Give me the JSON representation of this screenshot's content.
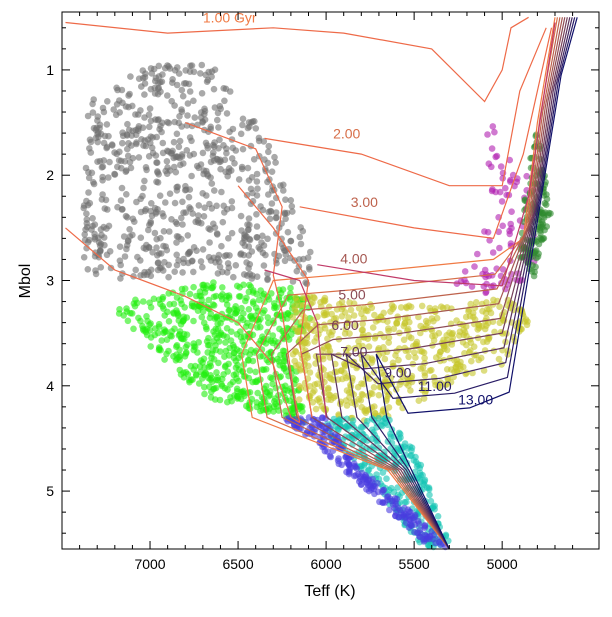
{
  "chart_data": {
    "type": "scatter",
    "xlabel": "Teff (K)",
    "ylabel": "Mbol",
    "xlim": [
      7500,
      4450
    ],
    "ylim": [
      5.55,
      0.45
    ],
    "x_ticks": [
      7000,
      6500,
      6000,
      5500,
      5000
    ],
    "y_ticks": [
      1,
      2,
      3,
      4,
      5
    ],
    "grid": false,
    "colors": {
      "grey_stars": "#6f6f6f",
      "green_stars": "#22ee0f",
      "yellow_stars": "#c6c62c",
      "teal_stars": "#14c4b4",
      "blue_stars": "#4a3ce0",
      "magenta_stars": "#b020b0",
      "darkgreen_stars": "#2e8a2e",
      "isochrone_young": "#f07a44",
      "isochrone_old": "#10106a"
    },
    "isochrone_labels": [
      "1.00 Gyr",
      "2.00",
      "3.00",
      "4.00",
      "5.00",
      "6.00",
      "7.00",
      "9.00",
      "11.00",
      "13.00"
    ],
    "series": [
      {
        "color_key": "grey_stars",
        "region": [
          [
            7400,
            2.9
          ],
          [
            7350,
            1.3
          ],
          [
            7000,
            0.95
          ],
          [
            6650,
            0.95
          ],
          [
            6350,
            1.6
          ],
          [
            6200,
            2.2
          ],
          [
            6050,
            2.9
          ],
          [
            6050,
            3.05
          ],
          [
            6300,
            3.0
          ],
          [
            6700,
            2.95
          ],
          [
            7200,
            3.0
          ]
        ],
        "count": 700
      },
      {
        "color_key": "green_stars",
        "region": [
          [
            7100,
            3.18
          ],
          [
            6600,
            3.0
          ],
          [
            6200,
            3.05
          ],
          [
            6050,
            3.2
          ],
          [
            6180,
            3.7
          ],
          [
            6120,
            4.35
          ],
          [
            6050,
            4.4
          ],
          [
            6700,
            4.1
          ],
          [
            7200,
            3.3
          ]
        ],
        "count": 600
      },
      {
        "color_key": "yellow_stars",
        "region": [
          [
            6180,
            3.1
          ],
          [
            5900,
            3.2
          ],
          [
            5300,
            3.25
          ],
          [
            4950,
            3.1
          ],
          [
            4850,
            3.4
          ],
          [
            5000,
            3.8
          ],
          [
            5300,
            4.0
          ],
          [
            5650,
            4.3
          ],
          [
            5850,
            4.35
          ],
          [
            6150,
            4.2
          ],
          [
            6200,
            3.6
          ]
        ],
        "count": 600
      },
      {
        "color_key": "teal_stars",
        "region": [
          [
            6000,
            4.3
          ],
          [
            5650,
            4.3
          ],
          [
            5500,
            4.6
          ],
          [
            5400,
            5.0
          ],
          [
            5300,
            5.5
          ],
          [
            5450,
            5.55
          ],
          [
            5700,
            5.0
          ],
          [
            6000,
            4.45
          ]
        ],
        "count": 300
      },
      {
        "color_key": "blue_stars",
        "region": [
          [
            6250,
            4.3
          ],
          [
            6000,
            4.3
          ],
          [
            5800,
            4.8
          ],
          [
            5500,
            5.2
          ],
          [
            5300,
            5.55
          ],
          [
            5400,
            5.55
          ],
          [
            5700,
            5.1
          ],
          [
            6100,
            4.5
          ]
        ],
        "count": 220
      },
      {
        "color_key": "magenta_stars",
        "region": [
          [
            5150,
            1.3
          ],
          [
            4820,
            2.1
          ],
          [
            4800,
            2.9
          ],
          [
            4950,
            3.15
          ],
          [
            5300,
            3.1
          ],
          [
            5050,
            2.3
          ],
          [
            5100,
            1.6
          ]
        ],
        "count": 90
      },
      {
        "color_key": "darkgreen_stars",
        "region": [
          [
            4800,
            1.5
          ],
          [
            4720,
            2.4
          ],
          [
            4820,
            3.0
          ],
          [
            4900,
            2.8
          ],
          [
            4860,
            2.0
          ]
        ],
        "count": 140
      }
    ],
    "isochrones": [
      {
        "label": "1.00 Gyr",
        "color_key": "isochrone_young",
        "points": [
          [
            7480,
            2.5
          ],
          [
            7200,
            2.9
          ],
          [
            6800,
            3.15
          ],
          [
            6500,
            3.4
          ],
          [
            6300,
            3.8
          ],
          [
            6200,
            4.3
          ],
          [
            6150,
            4.35
          ]
        ],
        "upper": [
          [
            7480,
            0.55
          ],
          [
            6900,
            0.65
          ],
          [
            6300,
            0.6
          ],
          [
            5900,
            0.65
          ],
          [
            5400,
            0.8
          ],
          [
            5100,
            1.3
          ],
          [
            5000,
            1.0
          ],
          [
            4950,
            0.6
          ],
          [
            4850,
            0.5
          ]
        ]
      },
      {
        "label": "2.00",
        "color_key": "isochrone_young",
        "points": [
          [
            6800,
            1.5
          ],
          [
            6400,
            1.75
          ],
          [
            6250,
            2.3
          ],
          [
            6300,
            2.95
          ],
          [
            6250,
            3.3
          ],
          [
            6180,
            4.1
          ],
          [
            6150,
            4.35
          ]
        ],
        "upper": [
          [
            6350,
            1.65
          ],
          [
            5800,
            1.8
          ],
          [
            5300,
            2.1
          ],
          [
            5000,
            2.1
          ],
          [
            4900,
            1.2
          ],
          [
            4750,
            0.6
          ]
        ]
      },
      {
        "label": "3.00",
        "color_key": "isochrone_young",
        "points": [
          [
            6500,
            2.1
          ],
          [
            6300,
            2.5
          ],
          [
            6100,
            3.0
          ],
          [
            6150,
            3.6
          ],
          [
            6080,
            4.3
          ]
        ],
        "upper": [
          [
            6150,
            2.3
          ],
          [
            5500,
            2.5
          ],
          [
            5050,
            2.6
          ],
          [
            4880,
            1.8
          ],
          [
            4720,
            0.6
          ]
        ]
      },
      {
        "label": "4.00",
        "color_key": "isochrone_old",
        "points": [
          [
            6350,
            2.9
          ],
          [
            6150,
            3.0
          ],
          [
            6050,
            3.4
          ],
          [
            6000,
            4.3
          ]
        ],
        "upper": [
          [
            6050,
            2.85
          ],
          [
            5500,
            3.0
          ],
          [
            5000,
            3.05
          ],
          [
            4850,
            2.2
          ],
          [
            4700,
            0.55
          ]
        ]
      }
    ]
  }
}
